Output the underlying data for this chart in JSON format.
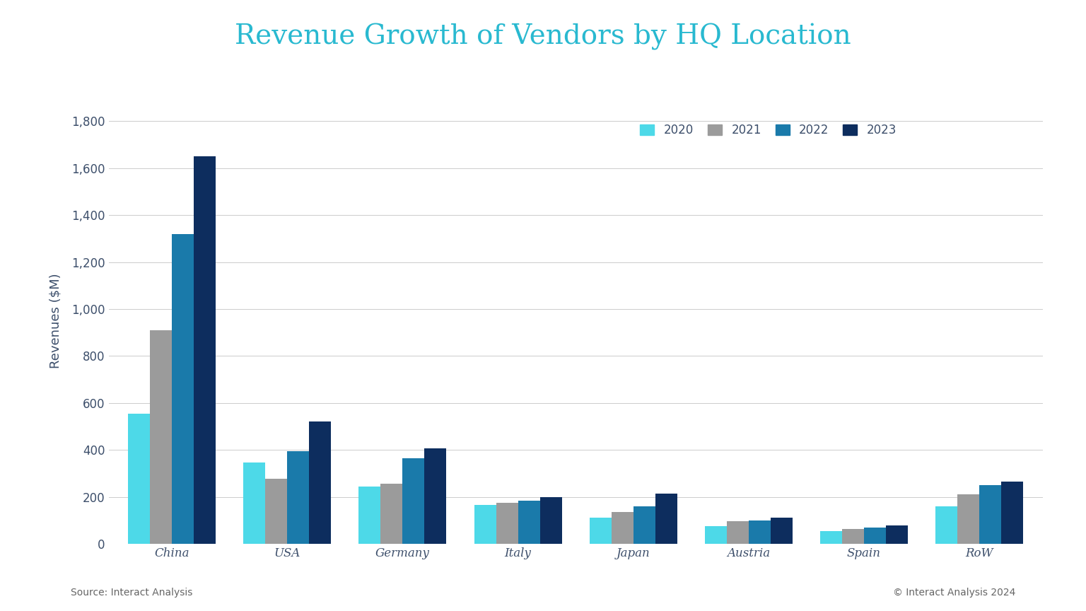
{
  "title": "Revenue Growth of Vendors by HQ Location",
  "title_color": "#29b9d0",
  "title_fontsize": 28,
  "ylabel": "Revenues ($M)",
  "ylabel_fontsize": 13,
  "categories": [
    "China",
    "USA",
    "Germany",
    "Italy",
    "Japan",
    "Austria",
    "Spain",
    "RoW"
  ],
  "years": [
    "2020",
    "2021",
    "2022",
    "2023"
  ],
  "year_colors": [
    "#4dd9e8",
    "#9b9b9b",
    "#1a7aaa",
    "#0d2d5e"
  ],
  "values": {
    "2020": [
      555,
      345,
      245,
      165,
      110,
      75,
      55,
      160
    ],
    "2021": [
      910,
      278,
      255,
      175,
      135,
      95,
      62,
      210
    ],
    "2022": [
      1320,
      395,
      365,
      185,
      160,
      100,
      70,
      250
    ],
    "2023": [
      1650,
      520,
      408,
      200,
      215,
      110,
      78,
      265
    ]
  },
  "ylim": [
    0,
    1900
  ],
  "yticks": [
    0,
    200,
    400,
    600,
    800,
    1000,
    1200,
    1400,
    1600,
    1800
  ],
  "background_color": "#ffffff",
  "grid_color": "#cccccc",
  "source_text": "Source: Interact Analysis",
  "copyright_text": "© Interact Analysis 2024",
  "footer_fontsize": 10,
  "legend_fontsize": 12,
  "tick_fontsize": 12,
  "tick_color": "#3d4f6b",
  "bar_width": 0.19
}
